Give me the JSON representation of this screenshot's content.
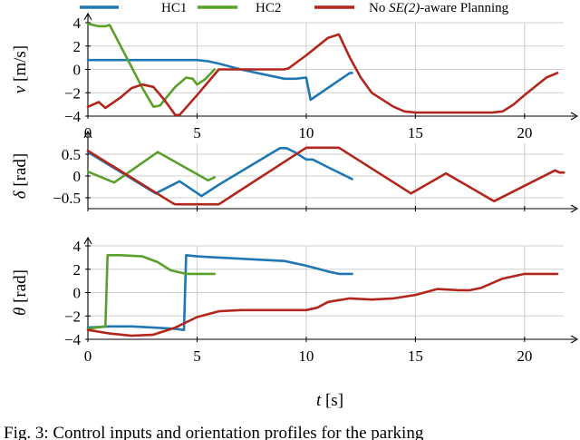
{
  "legend": [
    {
      "name": "HC1",
      "color": "#1f77b4"
    },
    {
      "name": "HC2",
      "color": "#5aa02c"
    },
    {
      "name": "No SE(2)-aware Planning",
      "color": "#b2261c"
    }
  ],
  "legend_italic_part": "SE(2)",
  "caption_fragment": "Fig. 3: Control inputs and orientation profiles for the parking",
  "chart_data": [
    {
      "type": "line",
      "ylabel": "v [m/s]",
      "ylabel_sym": "v",
      "ylabel_unit": "[m/s]",
      "ylim": [
        -4,
        4
      ],
      "xlim": [
        0,
        22
      ],
      "yticks": [
        4,
        2,
        0,
        -2,
        -4
      ],
      "xticks": [
        0,
        5,
        10,
        15,
        20
      ],
      "grid": true,
      "series": [
        {
          "name": "HC1",
          "color": "#1f77b4",
          "x": [
            0,
            1,
            2,
            3,
            4,
            5,
            5.5,
            6,
            7,
            8,
            9,
            9.5,
            10,
            10.2,
            12,
            12.1
          ],
          "y": [
            0.8,
            0.8,
            0.8,
            0.8,
            0.8,
            0.8,
            0.7,
            0.5,
            0,
            -0.4,
            -0.8,
            -0.8,
            -0.7,
            -2.6,
            -0.3,
            -0.3
          ]
        },
        {
          "name": "HC2",
          "color": "#5aa02c",
          "x": [
            0,
            0.5,
            0.8,
            1,
            1.5,
            2,
            2.5,
            3,
            3.3,
            3.6,
            4,
            4.5,
            4.8,
            5,
            5.4,
            5.8
          ],
          "y": [
            3.9,
            3.7,
            3.7,
            3.8,
            2,
            0.2,
            -1.6,
            -3.2,
            -3.1,
            -2.4,
            -1.5,
            -0.7,
            -0.8,
            -1.3,
            -0.8,
            0
          ]
        },
        {
          "name": "No SE(2)-aware Planning",
          "color": "#b2261c",
          "x": [
            0,
            0.5,
            0.8,
            1.5,
            2,
            2.5,
            3,
            3.5,
            4,
            4.2,
            5,
            6,
            7,
            8,
            9,
            9.2,
            10,
            11,
            11.5,
            12,
            12.5,
            13,
            14,
            14.5,
            15,
            16,
            17,
            18,
            18.5,
            19,
            19.5,
            20,
            21,
            21.5
          ],
          "y": [
            -3.2,
            -2.8,
            -3.3,
            -2.4,
            -1.6,
            -1.3,
            -1.5,
            -2.6,
            -3.9,
            -3.9,
            -2.2,
            0,
            0,
            0,
            0,
            0.1,
            1.2,
            2.7,
            3,
            1,
            -0.7,
            -2,
            -3.2,
            -3.6,
            -3.7,
            -3.7,
            -3.7,
            -3.7,
            -3.7,
            -3.6,
            -3.0,
            -2.2,
            -0.7,
            -0.3
          ]
        }
      ]
    },
    {
      "type": "line",
      "ylabel": "δ [rad]",
      "ylabel_sym": "δ",
      "ylabel_unit": "[rad]",
      "ylim": [
        -0.75,
        0.75
      ],
      "xlim": [
        0,
        22
      ],
      "yticks": [
        0.5,
        0,
        -0.5
      ],
      "yticklabels": [
        "0.5",
        "0",
        "−0.5"
      ],
      "grid": true,
      "series": [
        {
          "name": "HC1",
          "color": "#1f77b4",
          "x": [
            0,
            3.1,
            4.2,
            5.2,
            6,
            8.8,
            9.1,
            9.5,
            10,
            10.3,
            11,
            12.1
          ],
          "y": [
            0.55,
            -0.4,
            -0.12,
            -0.46,
            -0.2,
            0.64,
            0.64,
            0.54,
            0.38,
            0.38,
            0.2,
            -0.07
          ]
        },
        {
          "name": "HC2",
          "color": "#5aa02c",
          "x": [
            0,
            1.2,
            3.2,
            5.5,
            5.8
          ],
          "y": [
            0.1,
            -0.15,
            0.55,
            -0.1,
            -0.03
          ]
        },
        {
          "name": "No SE(2)-aware Planning",
          "color": "#b2261c",
          "x": [
            0,
            3.9,
            4,
            6,
            10,
            11.2,
            11.5,
            14.8,
            16.4,
            18.6,
            21.4,
            21.6,
            21.8
          ],
          "y": [
            0.58,
            -0.63,
            -0.65,
            -0.65,
            0.65,
            0.65,
            0.65,
            -0.4,
            0.06,
            -0.58,
            0.13,
            0.08,
            0.08
          ]
        }
      ]
    },
    {
      "type": "line",
      "ylabel": "θ [rad]",
      "ylabel_sym": "θ",
      "ylabel_unit": "[rad]",
      "xlabel": "t [s]",
      "xlabel_sym": "t",
      "xlabel_unit": "[s]",
      "ylim": [
        -4,
        4
      ],
      "xlim": [
        0,
        22
      ],
      "yticks": [
        4,
        2,
        0,
        -2,
        -4
      ],
      "xticks": [
        0,
        5,
        10,
        15,
        20
      ],
      "grid": true,
      "series": [
        {
          "name": "HC1",
          "color": "#1f77b4",
          "x": [
            0,
            1,
            2,
            3,
            4,
            4.4,
            4.5,
            5,
            6,
            8,
            9,
            10,
            11,
            11.5,
            12,
            12.1
          ],
          "y": [
            -3.0,
            -2.9,
            -2.9,
            -3.0,
            -3.1,
            -3.2,
            3.2,
            3.1,
            3.0,
            2.8,
            2.7,
            2.3,
            1.8,
            1.6,
            1.6,
            1.6
          ]
        },
        {
          "name": "HC2",
          "color": "#5aa02c",
          "x": [
            0,
            0.8,
            0.9,
            1.5,
            2.5,
            3.2,
            3.8,
            4.5,
            5,
            5.8
          ],
          "y": [
            -3.1,
            -2.9,
            3.2,
            3.2,
            3.1,
            2.6,
            1.9,
            1.6,
            1.6,
            1.6
          ]
        },
        {
          "name": "No SE(2)-aware Planning",
          "color": "#b2261c",
          "x": [
            0,
            1,
            2,
            3,
            4,
            5,
            6,
            7,
            8,
            9,
            10,
            10.5,
            11,
            12,
            13,
            14,
            15,
            16,
            17,
            17.5,
            18,
            19,
            20,
            21,
            21.5
          ],
          "y": [
            -3.2,
            -3.5,
            -3.7,
            -3.6,
            -3.0,
            -2.1,
            -1.6,
            -1.5,
            -1.5,
            -1.5,
            -1.5,
            -1.3,
            -0.8,
            -0.5,
            -0.6,
            -0.5,
            -0.2,
            0.3,
            0.2,
            0.2,
            0.4,
            1.2,
            1.6,
            1.6,
            1.6
          ]
        }
      ]
    }
  ]
}
